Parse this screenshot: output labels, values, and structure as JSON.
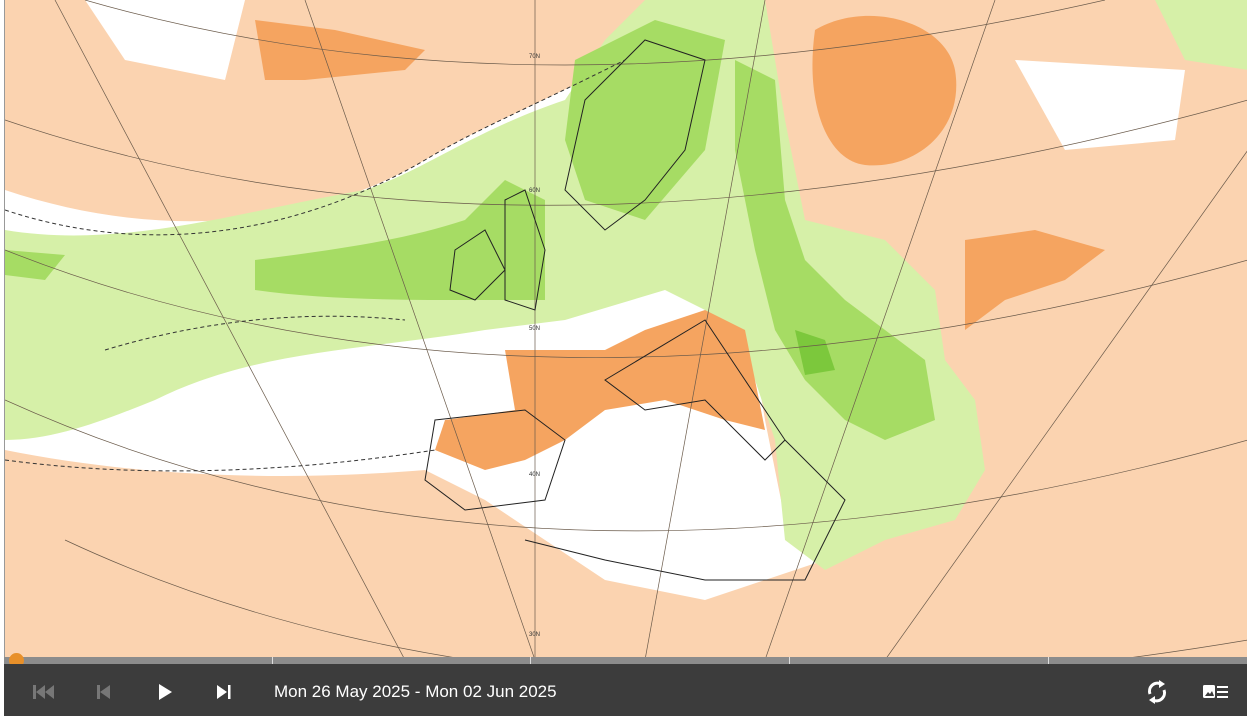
{
  "map": {
    "latitude_labels": [
      "70N",
      "60N",
      "50N",
      "40N",
      "30N"
    ],
    "colors": {
      "background": "#fbd3b0",
      "light_green": "#d6f0a8",
      "green": "#a6dc64",
      "dark_green": "#7cc83c",
      "orange": "#f5a460",
      "white": "#ffffff"
    }
  },
  "player": {
    "date_range": "Mon 26 May 2025 - Mon 02 Jun 2025",
    "progress": 0,
    "accent": "#e8902a",
    "buttons": [
      "first-frame",
      "previous-frame",
      "play",
      "last-frame",
      "loop",
      "legend"
    ]
  }
}
